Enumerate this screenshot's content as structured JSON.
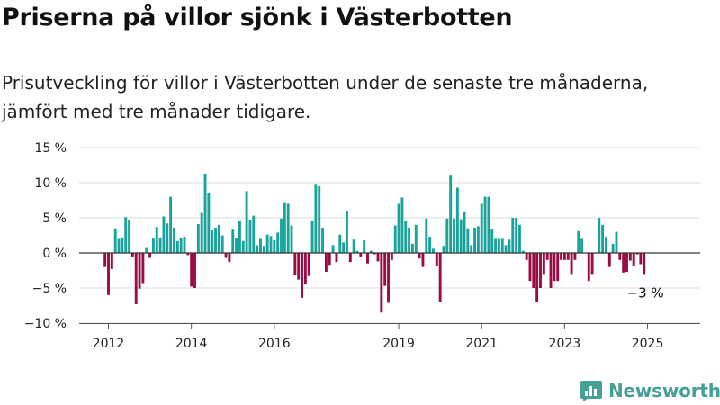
{
  "title": "Priserna på villor sjönk i Västerbotten",
  "subtitle": "Prisutveckling för villor i Västerbotten under de senaste tre månaderna, jämfört med tre månader tidigare.",
  "brand": {
    "name": "Newsworthy",
    "logo_icon": "bar-chart-logo-icon"
  },
  "colors": {
    "positive": "#1aa39a",
    "negative": "#990b42",
    "grid": "#dddddd",
    "zero_line": "#333333"
  },
  "chart_data": {
    "type": "bar",
    "ylim": [
      -10,
      15
    ],
    "yticks": [
      {
        "value": 15,
        "label": "15 %"
      },
      {
        "value": 10,
        "label": "10 %"
      },
      {
        "value": 5,
        "label": "5 %"
      },
      {
        "value": 0,
        "label": "0 %"
      },
      {
        "value": -5,
        "label": "−5 %"
      },
      {
        "value": -10,
        "label": "−10 %"
      }
    ],
    "xticks": [
      {
        "year": 2012,
        "label": "2012"
      },
      {
        "year": 2014,
        "label": "2014"
      },
      {
        "year": 2016,
        "label": "2016"
      },
      {
        "year": 2019,
        "label": "2019"
      },
      {
        "year": 2021,
        "label": "2021"
      },
      {
        "year": 2023,
        "label": "2023"
      },
      {
        "year": 2025,
        "label": "2025"
      }
    ],
    "start": "2011-12",
    "values": [
      -2,
      -6,
      -2.3,
      3.5,
      2,
      2.2,
      5.1,
      4.6,
      -0.5,
      -7.3,
      -5.1,
      -4.3,
      0.7,
      -0.7,
      2.1,
      3.7,
      2.2,
      5.2,
      4.2,
      8,
      3.6,
      1.7,
      2.1,
      2.3,
      -0.3,
      -4.8,
      -5,
      4.1,
      5.7,
      11.3,
      8.5,
      3.2,
      3.6,
      4,
      2.5,
      -0.7,
      -1.3,
      3.3,
      2.1,
      4.5,
      1.7,
      8.8,
      4.7,
      5.3,
      1.1,
      2,
      1,
      2.6,
      2.4,
      1.8,
      2.9,
      4.9,
      7.1,
      7,
      3.9,
      -3.2,
      -3.8,
      -6.4,
      -4.4,
      -3.3,
      4.5,
      9.7,
      9.5,
      3.6,
      -2.7,
      -1.7,
      1.1,
      -1.3,
      2.6,
      1.5,
      6,
      -1.3,
      1.9,
      0.3,
      -0.5,
      1.8,
      -1.5,
      0.3,
      -0.2,
      -1.2,
      -8.5,
      -4.7,
      -7.1,
      -1,
      3.9,
      7,
      7.9,
      4.5,
      3.6,
      1.3,
      4,
      -0.8,
      -2,
      4.9,
      2.3,
      0.6,
      -1.9,
      -7,
      1,
      4.9,
      11,
      4.9,
      9.3,
      4.8,
      5.8,
      3.5,
      1.1,
      3.6,
      3.8,
      7,
      8,
      8,
      3.4,
      2,
      2,
      2,
      1.1,
      1.9,
      5,
      5,
      4,
      0.3,
      -1,
      -4,
      -5,
      -7,
      -5,
      -3,
      -1,
      -5,
      -4,
      -4,
      -1,
      -1,
      -1,
      -3,
      -1,
      3.1,
      2,
      0,
      -4,
      -3,
      0,
      5,
      4,
      2.3,
      -2,
      1.3,
      3,
      -1,
      -2.8,
      -2.7,
      -1.1,
      -1.8,
      -0.2,
      -1.6,
      -3
    ],
    "annotation": {
      "label": "−3 %"
    }
  }
}
